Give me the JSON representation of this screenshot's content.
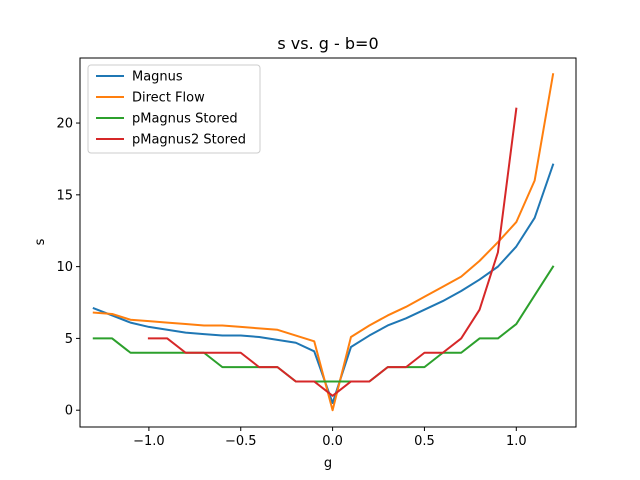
{
  "chart_data": {
    "type": "line",
    "title": "s vs. g - b=0",
    "xlabel": "g",
    "ylabel": "s",
    "xlim": [
      -1.375,
      1.325
    ],
    "ylim": [
      -1.17,
      24.53
    ],
    "xticks": [
      -1.0,
      -0.5,
      0.0,
      0.5,
      1.0
    ],
    "xtick_labels": [
      "−1.0",
      "−0.5",
      "0.0",
      "0.5",
      "1.0"
    ],
    "yticks": [
      0,
      5,
      10,
      15,
      20
    ],
    "ytick_labels": [
      "0",
      "5",
      "10",
      "15",
      "20"
    ],
    "grid": false,
    "legend_position": "top-left",
    "series": [
      {
        "name": "Magnus",
        "color": "#1f77b4",
        "x": [
          -1.3,
          -1.2,
          -1.1,
          -1.0,
          -0.9,
          -0.8,
          -0.7,
          -0.6,
          -0.5,
          -0.4,
          -0.3,
          -0.2,
          -0.1,
          0.0,
          0.1,
          0.2,
          0.3,
          0.4,
          0.5,
          0.6,
          0.7,
          0.8,
          0.9,
          1.0,
          1.1,
          1.2
        ],
        "y": [
          7.1,
          6.6,
          6.1,
          5.8,
          5.6,
          5.4,
          5.3,
          5.2,
          5.2,
          5.1,
          4.9,
          4.7,
          4.1,
          0.5,
          4.4,
          5.2,
          5.9,
          6.4,
          7.0,
          7.6,
          8.3,
          9.1,
          10.0,
          11.4,
          13.4,
          17.1
        ]
      },
      {
        "name": "Direct Flow",
        "color": "#ff7f0e",
        "x": [
          -1.3,
          -1.2,
          -1.1,
          -1.0,
          -0.9,
          -0.8,
          -0.7,
          -0.6,
          -0.5,
          -0.4,
          -0.3,
          -0.2,
          -0.1,
          0.0,
          0.1,
          0.2,
          0.3,
          0.4,
          0.5,
          0.6,
          0.7,
          0.8,
          0.9,
          1.0,
          1.1,
          1.2
        ],
        "y": [
          6.8,
          6.7,
          6.3,
          6.2,
          6.1,
          6.0,
          5.9,
          5.9,
          5.8,
          5.7,
          5.6,
          5.2,
          4.8,
          0.0,
          5.1,
          5.9,
          6.6,
          7.2,
          7.9,
          8.6,
          9.3,
          10.4,
          11.7,
          13.1,
          16.0,
          23.4
        ]
      },
      {
        "name": "pMagnus Stored",
        "color": "#2ca02c",
        "x": [
          -1.3,
          -1.2,
          -1.1,
          -1.0,
          -0.9,
          -0.8,
          -0.7,
          -0.6,
          -0.5,
          -0.4,
          -0.3,
          -0.2,
          -0.1,
          0.0,
          0.1,
          0.2,
          0.3,
          0.4,
          0.5,
          0.6,
          0.7,
          0.8,
          0.9,
          1.0,
          1.1,
          1.2
        ],
        "y": [
          5,
          5,
          4,
          4,
          4,
          4,
          4,
          3,
          3,
          3,
          3,
          2,
          2,
          2,
          2,
          2,
          3,
          3,
          3,
          4,
          4,
          5,
          5,
          6,
          8,
          10
        ]
      },
      {
        "name": "pMagnus2 Stored",
        "color": "#d62728",
        "x": [
          -1.0,
          -0.9,
          -0.8,
          -0.7,
          -0.6,
          -0.5,
          -0.4,
          -0.3,
          -0.2,
          -0.1,
          0.0,
          0.1,
          0.2,
          0.3,
          0.4,
          0.5,
          0.6,
          0.7,
          0.8,
          0.9,
          1.0
        ],
        "y": [
          5,
          5,
          4,
          4,
          4,
          4,
          3,
          3,
          2,
          2,
          1,
          2,
          2,
          3,
          3,
          4,
          4,
          5,
          7,
          11,
          21
        ]
      }
    ]
  }
}
